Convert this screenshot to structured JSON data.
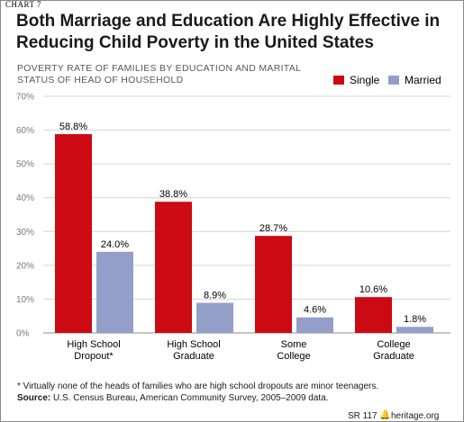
{
  "header": {
    "chart_label": "CHART 7",
    "title": "Both Marriage and Education Are Highly Effective in Reducing Child Poverty in the United States",
    "subtitle": "POVERTY RATE OF FAMILIES BY EDUCATION AND MARITAL STATUS OF HEAD OF HOUSEHOLD"
  },
  "footer": {
    "footnote": "* Virtually none of the heads of families who are high school dropouts are minor teenagers.",
    "source_label": "Source:",
    "source_text": "U.S. Census Bureau, American Community Survey, 2005–2009 data.",
    "report": "SR 117",
    "site": "heritage.org"
  },
  "chart_data": {
    "type": "bar",
    "categories": [
      [
        "High School",
        "Dropout*"
      ],
      [
        "High School",
        "Graduate"
      ],
      [
        "Some",
        "College"
      ],
      [
        "College",
        "Graduate"
      ]
    ],
    "series": [
      {
        "name": "Single",
        "color": "#cc0a14",
        "values": [
          58.8,
          38.8,
          28.7,
          10.6
        ],
        "labels": [
          "58.8%",
          "38.8%",
          "28.7%",
          "10.6%"
        ]
      },
      {
        "name": "Married",
        "color": "#949fc9",
        "values": [
          24.0,
          8.9,
          4.6,
          1.8
        ],
        "labels": [
          "24.0%",
          "8.9%",
          "4.6%",
          "1.8%"
        ]
      }
    ],
    "ylim": [
      0,
      70
    ],
    "yticks": [
      0,
      10,
      20,
      30,
      40,
      50,
      60,
      70
    ],
    "ytick_labels": [
      "0%",
      "10%",
      "20%",
      "30%",
      "40%",
      "50%",
      "60%",
      "70%"
    ],
    "grid": true,
    "legend_position": "top-right"
  }
}
